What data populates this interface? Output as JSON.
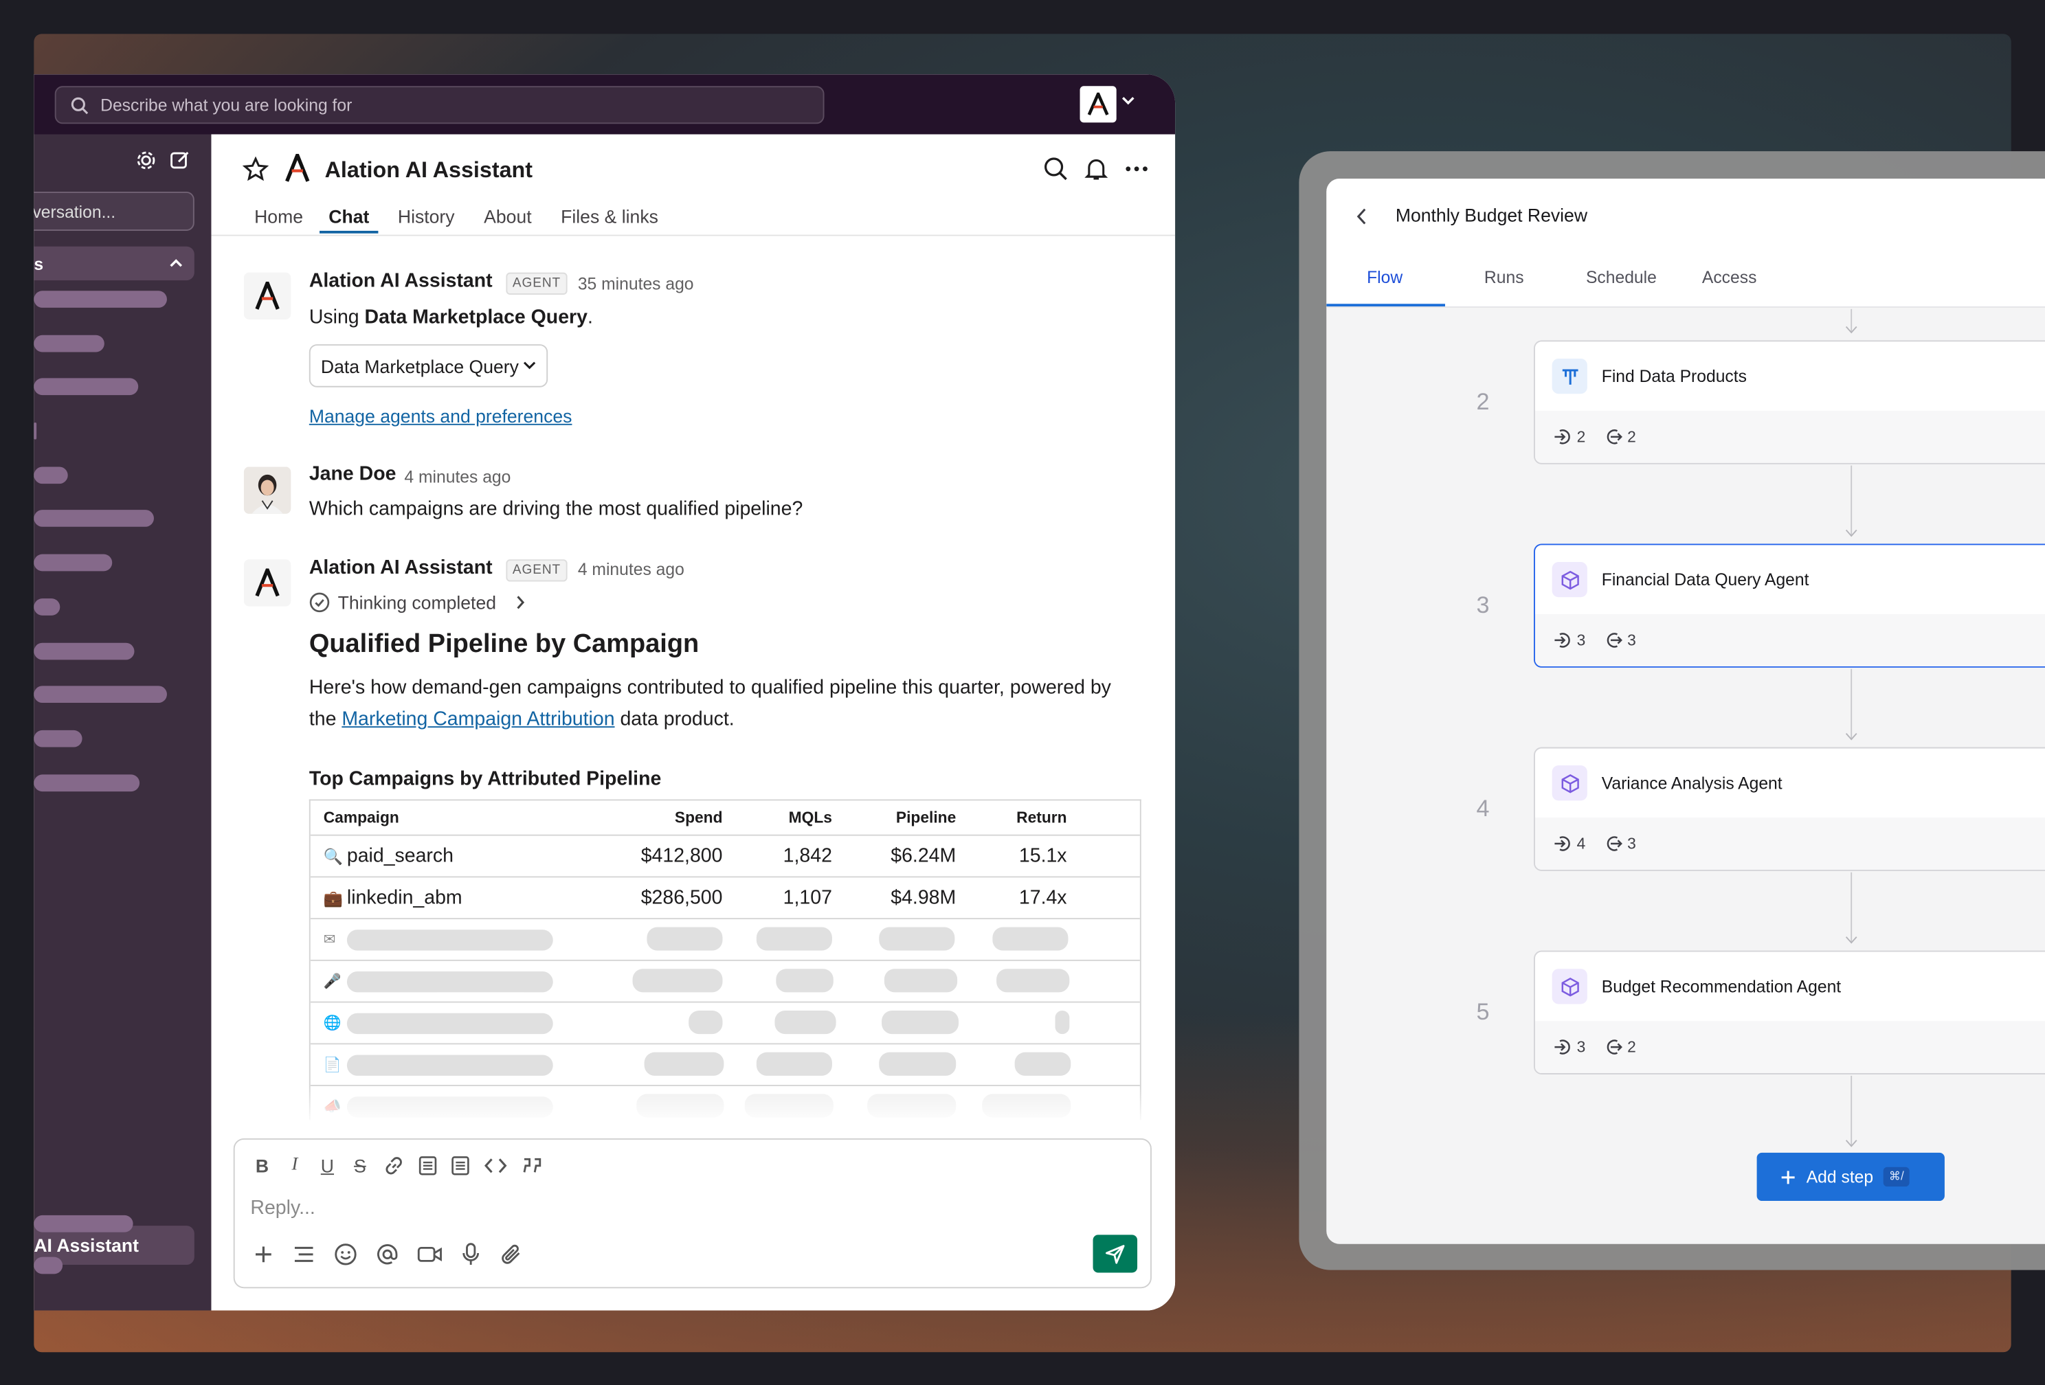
{
  "search": {
    "placeholder": "Describe what you are looking for"
  },
  "sidebar": {
    "conversation_input": "versation...",
    "section_label": "s",
    "active_item": "AI Assistant"
  },
  "channel": {
    "title": "Alation AI Assistant",
    "tabs": [
      "Home",
      "Chat",
      "History",
      "About",
      "Files & links"
    ],
    "active_tab": "Chat"
  },
  "messages": [
    {
      "author": "Alation AI Assistant",
      "badge": "AGENT",
      "time": "35 minutes ago",
      "text_prefix": "Using ",
      "text_bold": "Data Marketplace Query",
      "text_suffix": ".",
      "select_value": "Data Marketplace Query",
      "link": "Manage agents and preferences"
    },
    {
      "author": "Jane Doe",
      "time": "4 minutes ago",
      "text": "Which campaigns are driving the most qualified pipeline?"
    },
    {
      "author": "Alation AI Assistant",
      "badge": "AGENT",
      "time": "4 minutes ago",
      "thinking": "Thinking completed",
      "heading": "Qualified Pipeline by Campaign",
      "body_line1": "Here's how demand-gen campaigns contributed to qualified pipeline this quarter, powered by",
      "body_prefix": "the ",
      "body_link": "Marketing Campaign Attribution",
      "body_suffix": " data product.",
      "table_title": "Top Campaigns by Attributed Pipeline"
    }
  ],
  "table": {
    "headers": [
      "Campaign",
      "Spend",
      "MQLs",
      "Pipeline",
      "Return"
    ],
    "rows": [
      {
        "icon": "🔍",
        "campaign": "paid_search",
        "spend": "$412,800",
        "mqls": "1,842",
        "pipeline": "$6.24M",
        "return": "15.1x"
      },
      {
        "icon": "💼",
        "campaign": "linkedin_abm",
        "spend": "$286,500",
        "mqls": "1,107",
        "pipeline": "$4.98M",
        "return": "17.4x"
      }
    ],
    "placeholder_row_icons": [
      "✉",
      "🎤",
      "🌐",
      "📄",
      "📣"
    ]
  },
  "composer": {
    "placeholder": "Reply..."
  },
  "flow": {
    "title": "Monthly Budget Review",
    "tabs": [
      "Flow",
      "Runs",
      "Schedule",
      "Access"
    ],
    "active_tab": "Flow",
    "steps": [
      {
        "number": "2",
        "name": "Find Data Products",
        "inputs": "2",
        "outputs": "2",
        "icon": "tool-icon"
      },
      {
        "number": "3",
        "name": "Financial Data Query Agent",
        "inputs": "3",
        "outputs": "3",
        "icon": "agent-icon",
        "selected": true
      },
      {
        "number": "4",
        "name": "Variance Analysis Agent",
        "inputs": "4",
        "outputs": "3",
        "icon": "agent-icon"
      },
      {
        "number": "5",
        "name": "Budget Recommendation Agent",
        "inputs": "3",
        "outputs": "2",
        "icon": "agent-icon"
      }
    ],
    "add_step": "Add step",
    "shortcut": "⌘/"
  },
  "colors": {
    "topbar": "#24122a",
    "sidebar": "#3c2e3f",
    "link": "#1264a3",
    "send": "#007a5a",
    "primary": "#1d6fd8"
  }
}
